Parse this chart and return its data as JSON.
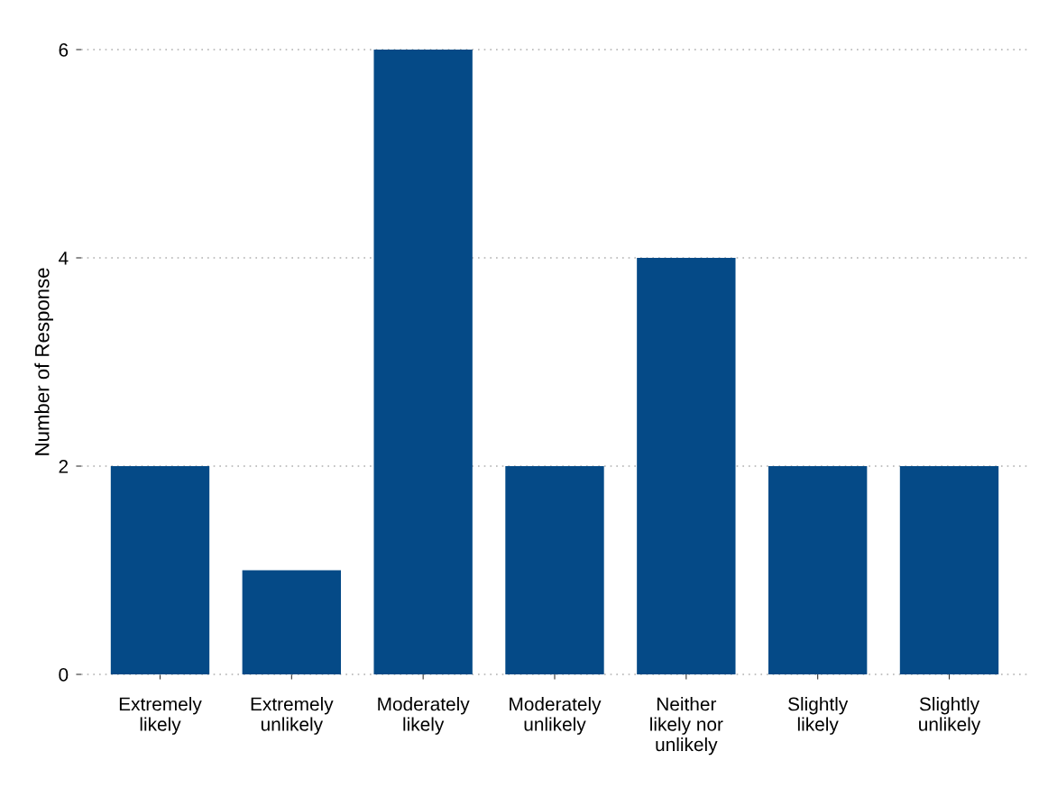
{
  "chart_data": {
    "type": "bar",
    "ylabel": "Number of Response",
    "categories": [
      "Extremely\nlikely",
      "Extremely\nunlikely",
      "Moderately\nlikely",
      "Moderately\nunlikely",
      "Neither\nlikely nor\nunlikely",
      "Slightly\nlikely",
      "Slightly\nunlikely"
    ],
    "values": [
      2,
      1,
      6,
      2,
      4,
      2,
      2
    ],
    "color": "#054a87",
    "ylim": [
      0,
      6
    ],
    "yticks": [
      0,
      2,
      4,
      6
    ],
    "grid": "y",
    "legend": false
  }
}
